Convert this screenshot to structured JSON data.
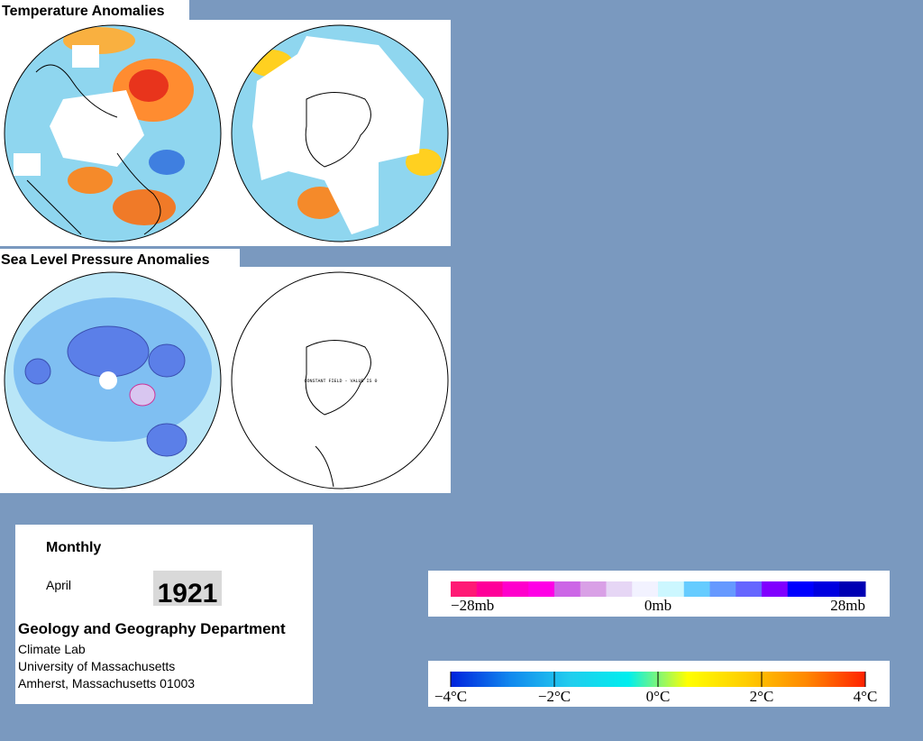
{
  "panels": {
    "temperature_title": "Temperature Anomalies",
    "pressure_title": "Sea Level Pressure Anomalies",
    "constant_field_note": "CONSTANT FIELD - VALUE IS 0"
  },
  "info": {
    "period": "Monthly",
    "month": "April",
    "year": "1921",
    "department": "Geology and Geography Department",
    "lines": [
      "Climate Lab",
      "University of Massachusetts",
      "Amherst, Massachusetts 01003"
    ]
  },
  "pressure_scale": {
    "labels": [
      "−28mb",
      "0mb",
      "28mb"
    ],
    "colors": [
      "#ff1a75",
      "#ff0099",
      "#ff00cc",
      "#ff00e6",
      "#cc66e6",
      "#d9a0e6",
      "#e6d6f5",
      "#f2f2ff",
      "#ccf7ff",
      "#66ccff",
      "#6699ff",
      "#6666ff",
      "#8000ff",
      "#0000ff",
      "#0000e0",
      "#0000b3"
    ]
  },
  "temperature_scale": {
    "labels": [
      "−4°C",
      "−2°C",
      "0°C",
      "2°C",
      "4°C"
    ],
    "colors": [
      "#0022dd",
      "#1188ee",
      "#22ccee",
      "#00eeee",
      "#ffff00",
      "#ffcc00",
      "#ff8800",
      "#ff2200"
    ]
  }
}
